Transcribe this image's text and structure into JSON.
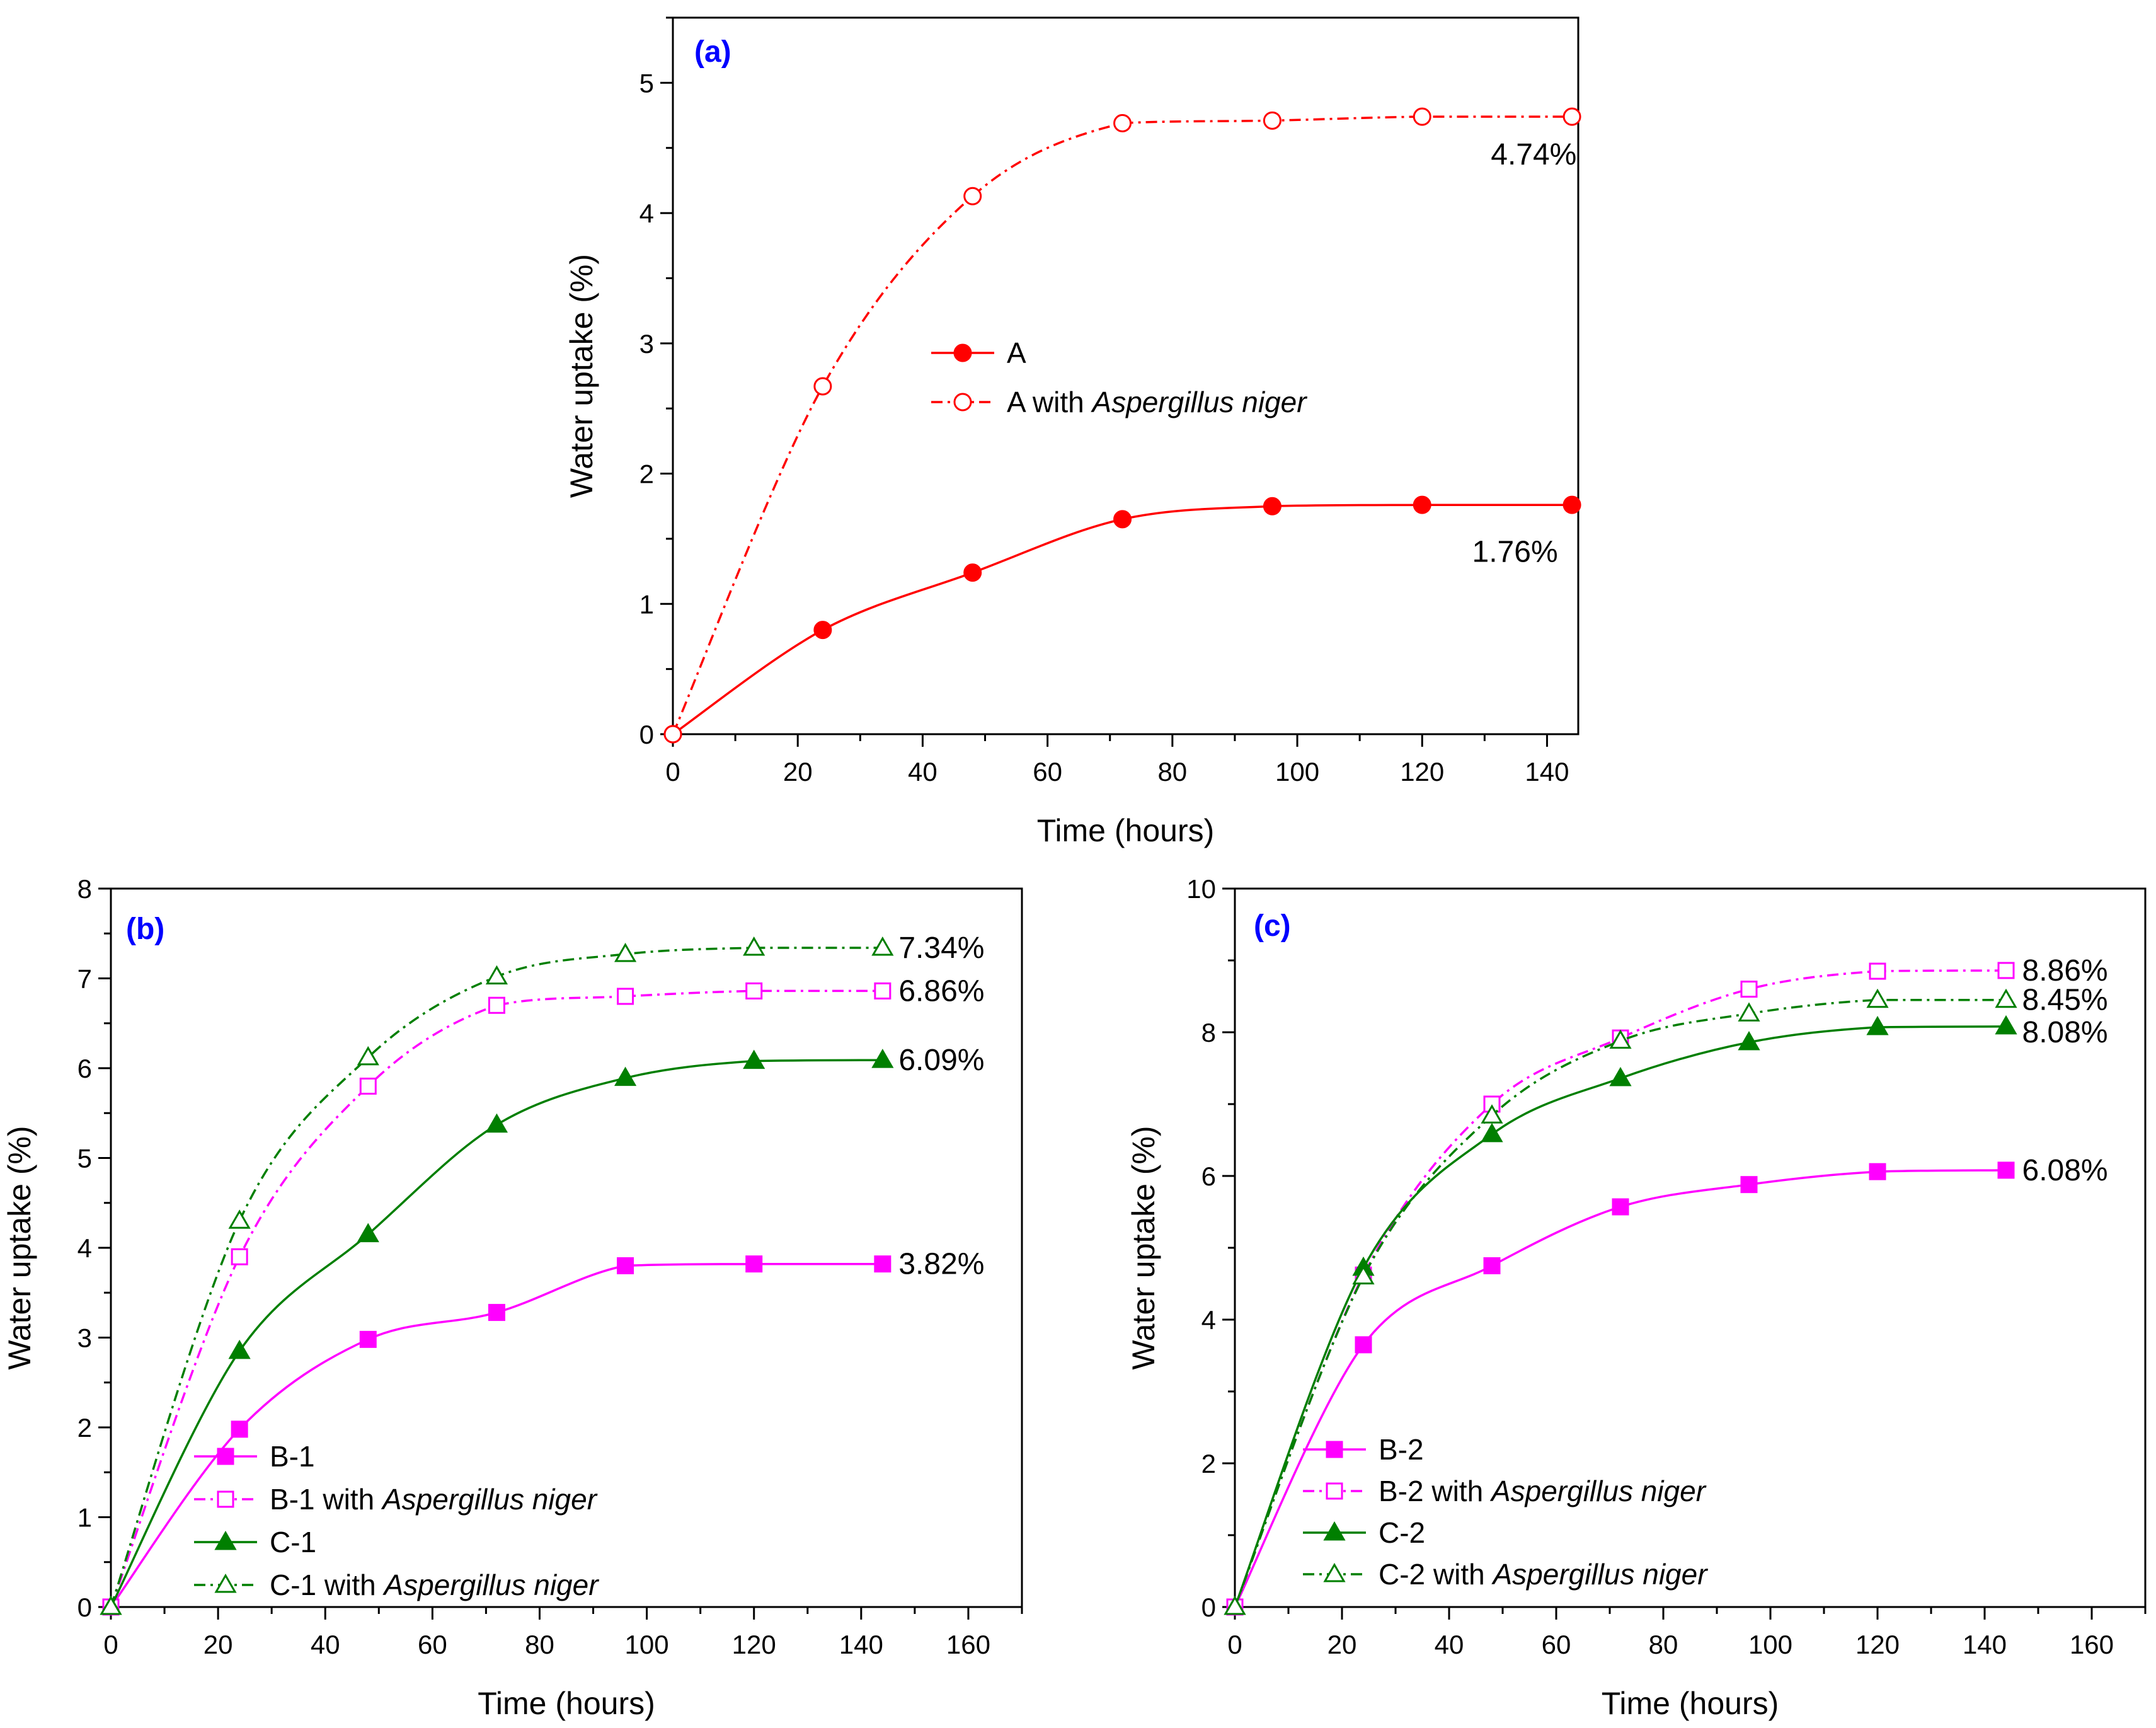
{
  "chart_data": [
    {
      "panel": "(a)",
      "type": "line",
      "xlabel": "Time (hours)",
      "ylabel": "Water uptake (%)",
      "xlim": [
        0,
        145
      ],
      "ylim": [
        0,
        5.5
      ],
      "xticks": [
        0,
        20,
        40,
        60,
        80,
        100,
        120,
        140
      ],
      "yticks": [
        0,
        1,
        2,
        3,
        4,
        5
      ],
      "series": [
        {
          "name": "A",
          "name_suffix": "",
          "color": "#ff0000",
          "marker": "circle",
          "filled": true,
          "dash": "solid",
          "x": [
            0,
            24,
            48,
            72,
            96,
            120,
            144
          ],
          "y": [
            0,
            0.8,
            1.24,
            1.65,
            1.75,
            1.76,
            1.76
          ]
        },
        {
          "name": "A with ",
          "name_suffix": "Aspergillus niger",
          "color": "#ff0000",
          "marker": "circle",
          "filled": false,
          "dash": "dashdot",
          "x": [
            0,
            24,
            48,
            72,
            96,
            120,
            144
          ],
          "y": [
            0,
            2.67,
            4.13,
            4.69,
            4.71,
            4.74,
            4.74
          ]
        }
      ],
      "annotations": [
        {
          "text": "4.74%",
          "x": 131,
          "y": 4.45
        },
        {
          "text": "1.76%",
          "x": 128,
          "y": 1.4
        }
      ]
    },
    {
      "panel": "(b)",
      "type": "line",
      "xlabel": "Time (hours)",
      "ylabel": "Water uptake (%)",
      "xlim": [
        0,
        170
      ],
      "ylim": [
        0,
        8
      ],
      "xticks": [
        0,
        20,
        40,
        60,
        80,
        100,
        120,
        140,
        160
      ],
      "yticks": [
        0,
        1,
        2,
        3,
        4,
        5,
        6,
        7,
        8
      ],
      "series": [
        {
          "name": "B-1",
          "name_suffix": "",
          "color": "#ff00ff",
          "marker": "square",
          "filled": true,
          "dash": "solid",
          "x": [
            0,
            24,
            48,
            72,
            96,
            120,
            144
          ],
          "y": [
            0,
            1.98,
            2.98,
            3.28,
            3.8,
            3.82,
            3.82
          ]
        },
        {
          "name": "B-1 with ",
          "name_suffix": "Aspergillus niger",
          "color": "#ff00ff",
          "marker": "square",
          "filled": false,
          "dash": "dashdot",
          "x": [
            0,
            24,
            48,
            72,
            96,
            120,
            144
          ],
          "y": [
            0,
            3.9,
            5.8,
            6.7,
            6.8,
            6.86,
            6.86
          ]
        },
        {
          "name": "C-1",
          "name_suffix": "",
          "color": "#007f00",
          "marker": "triangle",
          "filled": true,
          "dash": "solid",
          "x": [
            0,
            24,
            48,
            72,
            96,
            120,
            144
          ],
          "y": [
            0,
            2.85,
            4.15,
            5.37,
            5.89,
            6.08,
            6.09
          ]
        },
        {
          "name": "C-1 with ",
          "name_suffix": "Aspergillus niger",
          "color": "#007f00",
          "marker": "triangle",
          "filled": false,
          "dash": "dashdot",
          "x": [
            0,
            24,
            48,
            72,
            96,
            120,
            144
          ],
          "y": [
            0,
            4.3,
            6.12,
            7.02,
            7.27,
            7.34,
            7.34
          ]
        }
      ],
      "annotations": [
        {
          "text": "7.34%",
          "x": 147,
          "y": 7.34
        },
        {
          "text": "6.86%",
          "x": 147,
          "y": 6.86
        },
        {
          "text": "6.09%",
          "x": 147,
          "y": 6.09
        },
        {
          "text": "3.82%",
          "x": 147,
          "y": 3.82
        }
      ]
    },
    {
      "panel": "(c)",
      "type": "line",
      "xlabel": "Time (hours)",
      "ylabel": "Water uptake (%)",
      "xlim": [
        0,
        170
      ],
      "ylim": [
        0,
        10
      ],
      "xticks": [
        0,
        20,
        40,
        60,
        80,
        100,
        120,
        140,
        160
      ],
      "yticks": [
        0,
        2,
        4,
        6,
        8,
        10
      ],
      "series": [
        {
          "name": "B-2",
          "name_suffix": "",
          "color": "#ff00ff",
          "marker": "square",
          "filled": true,
          "dash": "solid",
          "x": [
            0,
            24,
            48,
            72,
            96,
            120,
            144
          ],
          "y": [
            0,
            3.65,
            4.75,
            5.57,
            5.88,
            6.06,
            6.08
          ]
        },
        {
          "name": "B-2 with ",
          "name_suffix": "Aspergillus niger",
          "color": "#ff00ff",
          "marker": "square",
          "filled": false,
          "dash": "dashdot",
          "x": [
            0,
            24,
            48,
            72,
            96,
            120,
            144
          ],
          "y": [
            0,
            4.62,
            7.0,
            7.92,
            8.6,
            8.85,
            8.86
          ]
        },
        {
          "name": "C-2",
          "name_suffix": "",
          "color": "#007f00",
          "marker": "triangle",
          "filled": true,
          "dash": "solid",
          "x": [
            0,
            24,
            48,
            72,
            96,
            120,
            144
          ],
          "y": [
            0,
            4.72,
            6.58,
            7.36,
            7.86,
            8.07,
            8.08
          ]
        },
        {
          "name": "C-2 with ",
          "name_suffix": "Aspergillus niger",
          "color": "#007f00",
          "marker": "triangle",
          "filled": false,
          "dash": "dashdot",
          "x": [
            0,
            24,
            48,
            72,
            96,
            120,
            144
          ],
          "y": [
            0,
            4.6,
            6.84,
            7.88,
            8.26,
            8.45,
            8.45
          ]
        }
      ],
      "annotations": [
        {
          "text": "8.86%",
          "x": 147,
          "y": 8.86
        },
        {
          "text": "8.45%",
          "x": 147,
          "y": 8.45
        },
        {
          "text": "8.08%",
          "x": 147,
          "y": 8.0
        },
        {
          "text": "6.08%",
          "x": 147,
          "y": 6.08
        }
      ]
    }
  ]
}
